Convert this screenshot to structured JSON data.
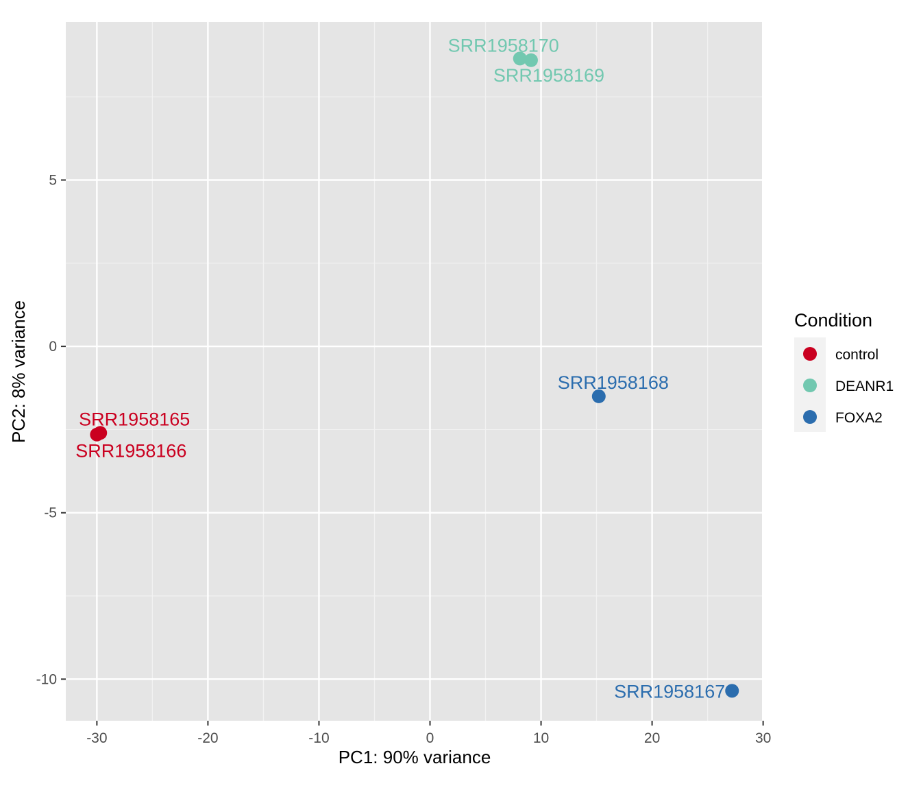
{
  "chart_data": {
    "type": "scatter",
    "xlabel": "PC1: 90% variance",
    "ylabel": "PC2: 8% variance",
    "xlim": [
      -32.8,
      29.9
    ],
    "ylim": [
      -11.25,
      9.75
    ],
    "x_ticks": [
      -30,
      -20,
      -10,
      0,
      10,
      20,
      30
    ],
    "y_ticks": [
      -10,
      -5,
      0,
      5
    ],
    "x_tick_labels": [
      "-30",
      "-20",
      "-10",
      "0",
      "10",
      "20",
      "30"
    ],
    "y_tick_labels": [
      "-10",
      "-5",
      "0",
      "5"
    ],
    "grid": true,
    "legend": {
      "title": "Condition",
      "placement": "right",
      "entries": [
        {
          "name": "control",
          "color": "#CA0020"
        },
        {
          "name": "DEANR1",
          "color": "#72C8B0"
        },
        {
          "name": "FOXA2",
          "color": "#2B6DAE"
        }
      ]
    },
    "points": [
      {
        "label": "SRR1958165",
        "condition": "control",
        "x": -29.7,
        "y": -2.6,
        "label_pos": "above"
      },
      {
        "label": "SRR1958166",
        "condition": "control",
        "x": -30.0,
        "y": -2.65,
        "label_pos": "below"
      },
      {
        "label": "SRR1958167",
        "condition": "FOXA2",
        "x": 27.2,
        "y": -10.35,
        "label_pos": "left"
      },
      {
        "label": "SRR1958168",
        "condition": "FOXA2",
        "x": 15.2,
        "y": -1.5,
        "label_pos": "above"
      },
      {
        "label": "SRR1958169",
        "condition": "DEANR1",
        "x": 9.1,
        "y": 8.6,
        "label_pos": "below"
      },
      {
        "label": "SRR1958170",
        "condition": "DEANR1",
        "x": 8.1,
        "y": 8.65,
        "label_pos": "above"
      }
    ]
  }
}
